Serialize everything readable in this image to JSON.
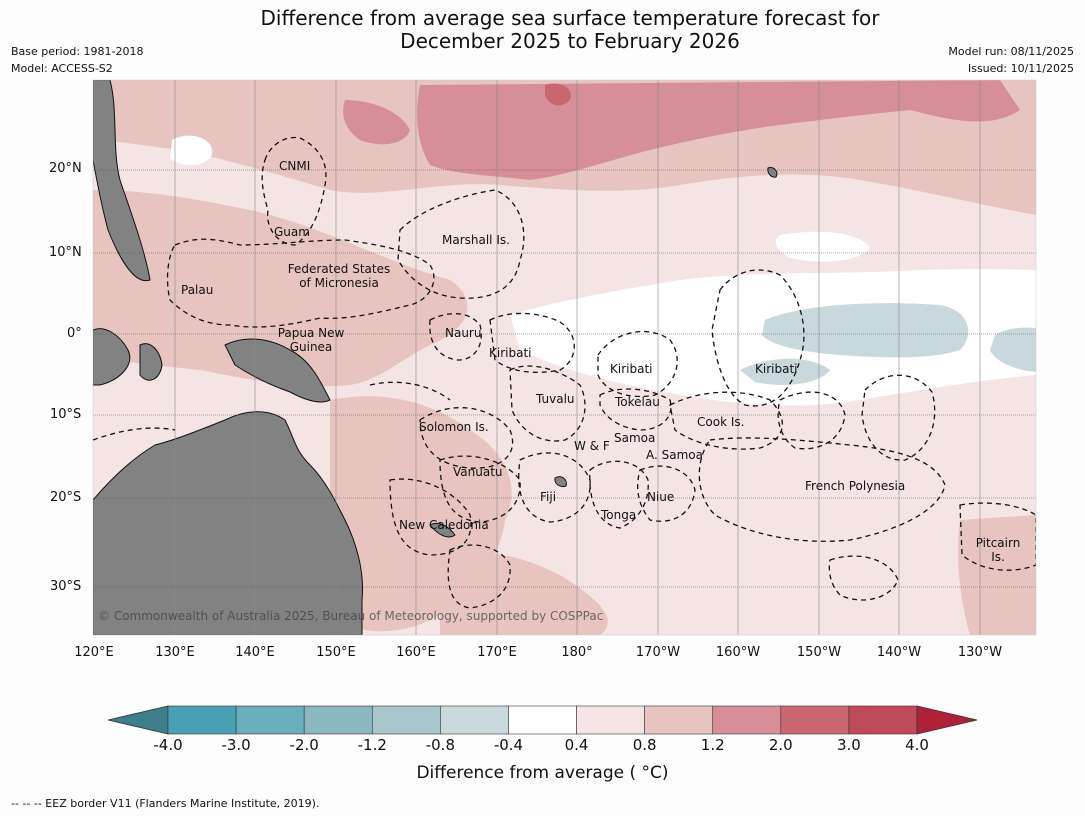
{
  "title": {
    "line1": "Difference from average sea surface temperature forecast for",
    "line2": "December 2025 to February 2026"
  },
  "meta": {
    "base_period": "Base period: 1981-2018",
    "model": "Model: ACCESS-S2",
    "model_run": "Model run: 08/11/2025",
    "issued": "Issued: 10/11/2025"
  },
  "axes": {
    "lat_ticks": [
      "20°N",
      "10°N",
      "0°",
      "10°S",
      "20°S",
      "30°S"
    ],
    "lon_ticks": [
      "120°E",
      "130°E",
      "140°E",
      "150°E",
      "160°E",
      "170°E",
      "180°",
      "170°W",
      "160°W",
      "150°W",
      "140°W",
      "130°W"
    ]
  },
  "regions": {
    "cnmi": "CNMI",
    "guam": "Guam",
    "marshall": "Marshall Is.",
    "palau": "Palau",
    "fsm_1": "Federated States",
    "fsm_2": "of Micronesia",
    "png_1": "Papua New",
    "png_2": "Guinea",
    "nauru": "Nauru",
    "kiribati_w": "Kiribati",
    "kiribati_c": "Kiribati",
    "kiribati_e": "Kiribati",
    "tuvalu": "Tuvalu",
    "tokelau": "Tokelau",
    "cook": "Cook Is.",
    "solomon": "Solomon Is.",
    "samoa": "Samoa",
    "wf": "W & F",
    "asamoa": "A. Samoa",
    "vanuatu": "Vanuatu",
    "fiji": "Fiji",
    "niue": "Niue",
    "tonga": "Tonga",
    "french_polynesia": "French Polynesia",
    "new_caledonia": "New Caledonia",
    "pitcairn_1": "Pitcairn",
    "pitcairn_2": "Is."
  },
  "copyright": "© Commonwealth of Australia 2025, Bureau of Meteorology, supported by COSPPac",
  "colorbar": {
    "bins": [
      "-4.0",
      "-3.0",
      "-2.0",
      "-1.2",
      "-0.8",
      "-0.4",
      "0.4",
      "0.8",
      "1.2",
      "2.0",
      "3.0",
      "4.0"
    ],
    "colors": [
      "#3c7f8c",
      "#4aa0b3",
      "#6aadbd",
      "#8ab7c2",
      "#a8c7cc",
      "#c8d8dc",
      "#ffffff",
      "#f4e5e4",
      "#e8c4c1",
      "#d68f98",
      "#c8676f",
      "#c14a58",
      "#b0203a"
    ],
    "label": "Difference from average ( °C)"
  },
  "eez_note": "--  --  -- EEZ border V11 (Flanders Marine Institute, 2019)."
}
